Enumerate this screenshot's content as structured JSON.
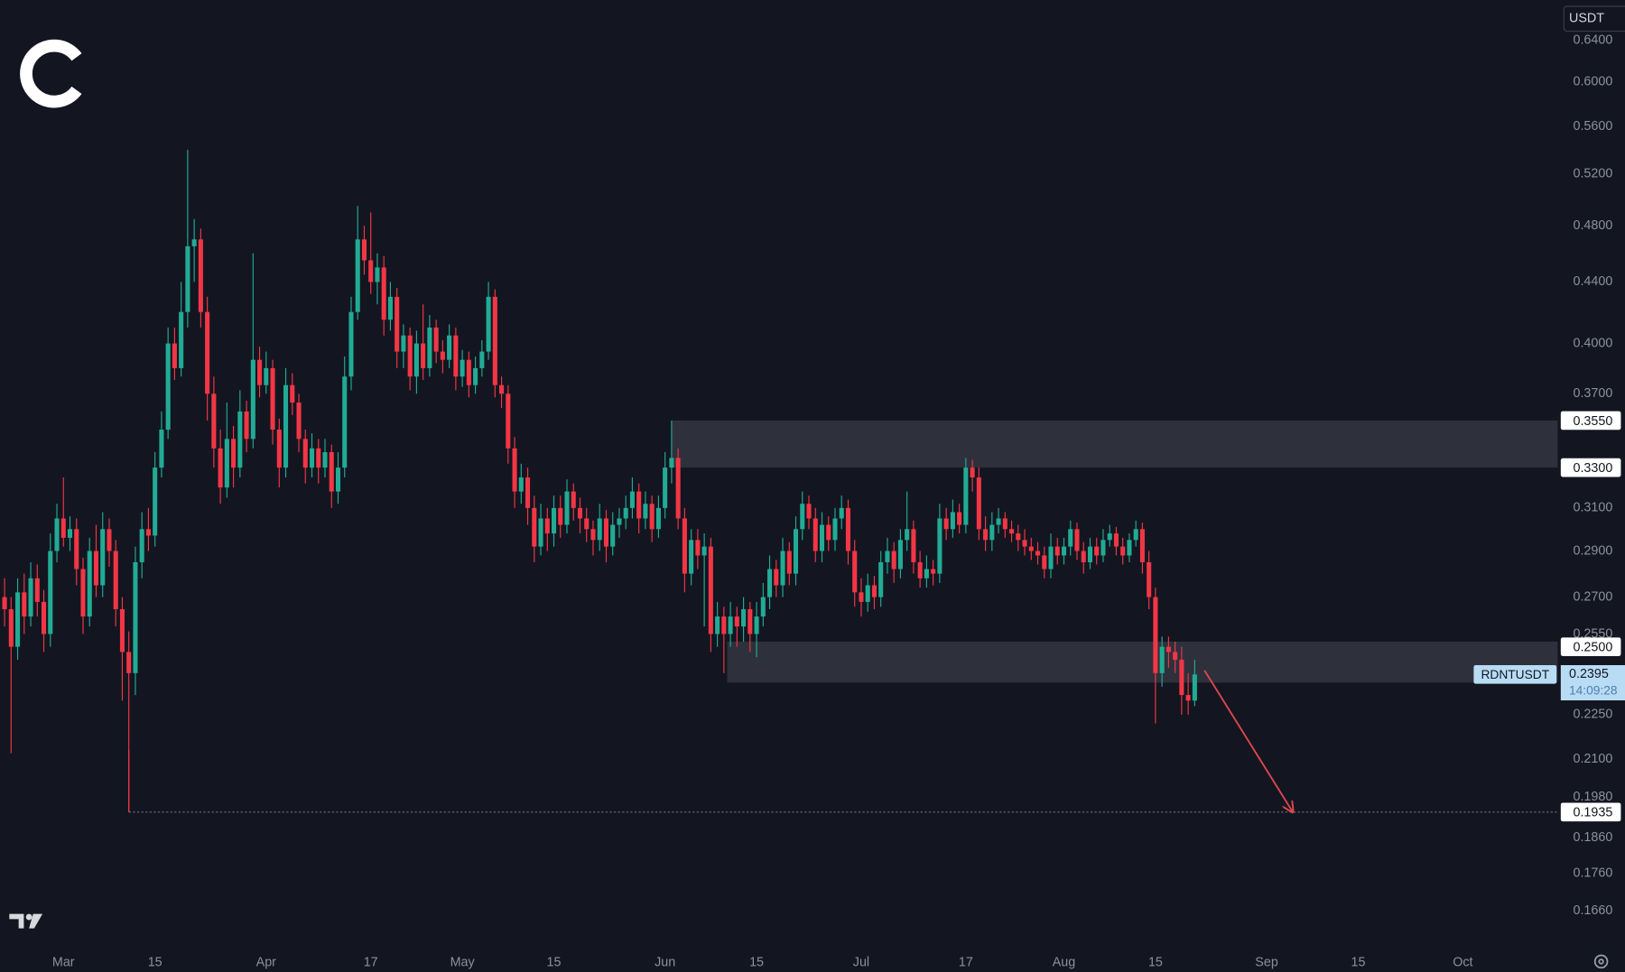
{
  "chart_data": {
    "type": "candlestick",
    "currency": "USDT",
    "log_scale": true,
    "up_color": "#22ab94",
    "down_color": "#f23645",
    "xlim": [
      -9.7,
      228.5
    ],
    "ylim": [
      0.158,
      0.681
    ],
    "xticks": [
      {
        "value": 0,
        "label": "Mar"
      },
      {
        "value": 14,
        "label": "15"
      },
      {
        "value": 31,
        "label": "Apr"
      },
      {
        "value": 47,
        "label": "17"
      },
      {
        "value": 61,
        "label": "May"
      },
      {
        "value": 75,
        "label": "15"
      },
      {
        "value": 92,
        "label": "Jun"
      },
      {
        "value": 106,
        "label": "15"
      },
      {
        "value": 122,
        "label": "Jul"
      },
      {
        "value": 138,
        "label": "17"
      },
      {
        "value": 153,
        "label": "Aug"
      },
      {
        "value": 167,
        "label": "15"
      },
      {
        "value": 184,
        "label": "Sep"
      },
      {
        "value": 198,
        "label": "15"
      },
      {
        "value": 214,
        "label": "Oct"
      }
    ],
    "yticks": [
      {
        "value": 0.64,
        "label": "0.6400"
      },
      {
        "value": 0.6,
        "label": "0.6000"
      },
      {
        "value": 0.56,
        "label": "0.5600"
      },
      {
        "value": 0.52,
        "label": "0.5200"
      },
      {
        "value": 0.48,
        "label": "0.4800"
      },
      {
        "value": 0.44,
        "label": "0.4400"
      },
      {
        "value": 0.4,
        "label": "0.4000"
      },
      {
        "value": 0.37,
        "label": "0.3700"
      },
      {
        "value": 0.31,
        "label": "0.3100"
      },
      {
        "value": 0.29,
        "label": "0.2900"
      },
      {
        "value": 0.27,
        "label": "0.2700"
      },
      {
        "value": 0.255,
        "label": "0.2550"
      },
      {
        "value": 0.225,
        "label": "0.2250"
      },
      {
        "value": 0.21,
        "label": "0.2100"
      },
      {
        "value": 0.198,
        "label": "0.1980"
      },
      {
        "value": 0.186,
        "label": "0.1860"
      },
      {
        "value": 0.176,
        "label": "0.1760"
      },
      {
        "value": 0.166,
        "label": "0.1660"
      }
    ],
    "zones": [
      {
        "x0": 93,
        "y0": 0.33,
        "y1": 0.355,
        "color": "#787b86"
      },
      {
        "x0": 101.5,
        "y0": 0.2365,
        "y1": 0.252,
        "color": "#787b86"
      }
    ],
    "support_line": {
      "x0": 10,
      "value": 0.1935
    },
    "arrow": {
      "from": [
        174.5,
        0.241
      ],
      "to": [
        188,
        0.1935
      ],
      "color": "#e0474c"
    },
    "price_labels": [
      {
        "value": 0.355,
        "label": "0.3550"
      },
      {
        "value": 0.33,
        "label": "0.3300"
      },
      {
        "value": 0.25,
        "label": "0.2500"
      },
      {
        "value": 0.1935,
        "label": "0.1935"
      }
    ],
    "last_price": {
      "value": 0.2395,
      "label": "0.2395",
      "symbol": "RDNTUSDT",
      "countdown": "14:09:28"
    },
    "x": [
      -9,
      -8,
      -7,
      -6,
      -5,
      -4,
      -3,
      -2,
      -1,
      0,
      1,
      2,
      3,
      4,
      5,
      6,
      7,
      8,
      9,
      10,
      11,
      12,
      13,
      14,
      15,
      16,
      17,
      18,
      19,
      20,
      21,
      22,
      23,
      24,
      25,
      26,
      27,
      28,
      29,
      30,
      31,
      32,
      33,
      34,
      35,
      36,
      37,
      38,
      39,
      40,
      41,
      42,
      43,
      44,
      45,
      46,
      47,
      48,
      49,
      50,
      51,
      52,
      53,
      54,
      55,
      56,
      57,
      58,
      59,
      60,
      61,
      62,
      63,
      64,
      65,
      66,
      67,
      68,
      69,
      70,
      71,
      72,
      73,
      74,
      75,
      76,
      77,
      78,
      79,
      80,
      81,
      82,
      83,
      84,
      85,
      86,
      87,
      88,
      89,
      90,
      91,
      92,
      93,
      94,
      95,
      96,
      97,
      98,
      99,
      100,
      101,
      102,
      103,
      104,
      105,
      106,
      107,
      108,
      109,
      110,
      111,
      112,
      113,
      114,
      115,
      116,
      117,
      118,
      119,
      120,
      121,
      122,
      123,
      124,
      125,
      126,
      127,
      128,
      129,
      130,
      131,
      132,
      133,
      134,
      135,
      136,
      137,
      138,
      139,
      140,
      141,
      142,
      143,
      144,
      145,
      146,
      147,
      148,
      149,
      150,
      151,
      152,
      153,
      154,
      155,
      156,
      157,
      158,
      159,
      160,
      161,
      162,
      163,
      164,
      165,
      166,
      167,
      168,
      169,
      170,
      171,
      172,
      173
    ],
    "ohlc": [
      [
        0.27,
        0.278,
        0.258,
        0.265
      ],
      [
        0.265,
        0.27,
        0.212,
        0.25
      ],
      [
        0.25,
        0.278,
        0.245,
        0.272
      ],
      [
        0.272,
        0.28,
        0.255,
        0.262
      ],
      [
        0.262,
        0.285,
        0.258,
        0.278
      ],
      [
        0.278,
        0.284,
        0.262,
        0.268
      ],
      [
        0.268,
        0.273,
        0.248,
        0.255
      ],
      [
        0.255,
        0.298,
        0.25,
        0.29
      ],
      [
        0.29,
        0.312,
        0.285,
        0.305
      ],
      [
        0.305,
        0.325,
        0.292,
        0.296
      ],
      [
        0.296,
        0.306,
        0.29,
        0.3
      ],
      [
        0.3,
        0.305,
        0.275,
        0.282
      ],
      [
        0.282,
        0.287,
        0.255,
        0.262
      ],
      [
        0.262,
        0.296,
        0.258,
        0.29
      ],
      [
        0.29,
        0.302,
        0.27,
        0.275
      ],
      [
        0.275,
        0.308,
        0.27,
        0.3
      ],
      [
        0.3,
        0.305,
        0.283,
        0.29
      ],
      [
        0.29,
        0.295,
        0.258,
        0.265
      ],
      [
        0.265,
        0.27,
        0.23,
        0.248
      ],
      [
        0.248,
        0.256,
        0.1935,
        0.24
      ],
      [
        0.24,
        0.292,
        0.232,
        0.285
      ],
      [
        0.285,
        0.308,
        0.278,
        0.3
      ],
      [
        0.3,
        0.31,
        0.29,
        0.297
      ],
      [
        0.297,
        0.338,
        0.292,
        0.33
      ],
      [
        0.33,
        0.36,
        0.325,
        0.35
      ],
      [
        0.35,
        0.41,
        0.345,
        0.4
      ],
      [
        0.4,
        0.41,
        0.378,
        0.385
      ],
      [
        0.385,
        0.44,
        0.38,
        0.42
      ],
      [
        0.42,
        0.54,
        0.41,
        0.465
      ],
      [
        0.465,
        0.485,
        0.44,
        0.47
      ],
      [
        0.47,
        0.478,
        0.41,
        0.42
      ],
      [
        0.42,
        0.43,
        0.355,
        0.37
      ],
      [
        0.37,
        0.38,
        0.33,
        0.34
      ],
      [
        0.34,
        0.35,
        0.312,
        0.32
      ],
      [
        0.32,
        0.365,
        0.315,
        0.345
      ],
      [
        0.345,
        0.352,
        0.32,
        0.33
      ],
      [
        0.33,
        0.372,
        0.325,
        0.36
      ],
      [
        0.36,
        0.366,
        0.338,
        0.345
      ],
      [
        0.345,
        0.46,
        0.34,
        0.39
      ],
      [
        0.39,
        0.398,
        0.368,
        0.375
      ],
      [
        0.375,
        0.395,
        0.37,
        0.385
      ],
      [
        0.385,
        0.39,
        0.342,
        0.35
      ],
      [
        0.35,
        0.356,
        0.32,
        0.33
      ],
      [
        0.33,
        0.385,
        0.325,
        0.375
      ],
      [
        0.375,
        0.382,
        0.358,
        0.365
      ],
      [
        0.365,
        0.37,
        0.338,
        0.345
      ],
      [
        0.345,
        0.35,
        0.322,
        0.33
      ],
      [
        0.33,
        0.348,
        0.325,
        0.34
      ],
      [
        0.34,
        0.345,
        0.322,
        0.33
      ],
      [
        0.33,
        0.345,
        0.325,
        0.338
      ],
      [
        0.338,
        0.342,
        0.31,
        0.318
      ],
      [
        0.318,
        0.338,
        0.312,
        0.33
      ],
      [
        0.33,
        0.392,
        0.325,
        0.38
      ],
      [
        0.38,
        0.43,
        0.372,
        0.42
      ],
      [
        0.42,
        0.495,
        0.415,
        0.47
      ],
      [
        0.47,
        0.48,
        0.445,
        0.455
      ],
      [
        0.455,
        0.49,
        0.432,
        0.44
      ],
      [
        0.44,
        0.46,
        0.425,
        0.45
      ],
      [
        0.45,
        0.458,
        0.405,
        0.415
      ],
      [
        0.415,
        0.44,
        0.408,
        0.43
      ],
      [
        0.43,
        0.436,
        0.385,
        0.395
      ],
      [
        0.395,
        0.412,
        0.385,
        0.405
      ],
      [
        0.405,
        0.41,
        0.372,
        0.38
      ],
      [
        0.38,
        0.408,
        0.37,
        0.4
      ],
      [
        0.4,
        0.425,
        0.378,
        0.385
      ],
      [
        0.385,
        0.418,
        0.38,
        0.41
      ],
      [
        0.41,
        0.415,
        0.388,
        0.395
      ],
      [
        0.395,
        0.402,
        0.382,
        0.39
      ],
      [
        0.39,
        0.412,
        0.385,
        0.405
      ],
      [
        0.405,
        0.41,
        0.372,
        0.38
      ],
      [
        0.38,
        0.396,
        0.374,
        0.39
      ],
      [
        0.39,
        0.395,
        0.368,
        0.375
      ],
      [
        0.375,
        0.392,
        0.37,
        0.385
      ],
      [
        0.385,
        0.402,
        0.38,
        0.395
      ],
      [
        0.395,
        0.44,
        0.39,
        0.43
      ],
      [
        0.43,
        0.435,
        0.368,
        0.375
      ],
      [
        0.375,
        0.38,
        0.362,
        0.37
      ],
      [
        0.37,
        0.375,
        0.332,
        0.34
      ],
      [
        0.34,
        0.346,
        0.31,
        0.318
      ],
      [
        0.318,
        0.332,
        0.312,
        0.325
      ],
      [
        0.325,
        0.33,
        0.302,
        0.31
      ],
      [
        0.31,
        0.316,
        0.285,
        0.292
      ],
      [
        0.292,
        0.312,
        0.288,
        0.305
      ],
      [
        0.305,
        0.31,
        0.29,
        0.298
      ],
      [
        0.298,
        0.316,
        0.292,
        0.31
      ],
      [
        0.31,
        0.316,
        0.296,
        0.302
      ],
      [
        0.302,
        0.324,
        0.298,
        0.318
      ],
      [
        0.318,
        0.322,
        0.304,
        0.31
      ],
      [
        0.31,
        0.315,
        0.298,
        0.305
      ],
      [
        0.305,
        0.31,
        0.294,
        0.3
      ],
      [
        0.3,
        0.304,
        0.288,
        0.295
      ],
      [
        0.295,
        0.312,
        0.29,
        0.305
      ],
      [
        0.305,
        0.309,
        0.285,
        0.292
      ],
      [
        0.292,
        0.308,
        0.288,
        0.302
      ],
      [
        0.302,
        0.31,
        0.296,
        0.305
      ],
      [
        0.305,
        0.316,
        0.3,
        0.31
      ],
      [
        0.31,
        0.325,
        0.305,
        0.318
      ],
      [
        0.318,
        0.322,
        0.298,
        0.305
      ],
      [
        0.305,
        0.318,
        0.3,
        0.312
      ],
      [
        0.312,
        0.316,
        0.294,
        0.3
      ],
      [
        0.3,
        0.316,
        0.296,
        0.31
      ],
      [
        0.31,
        0.338,
        0.305,
        0.33
      ],
      [
        0.33,
        0.355,
        0.322,
        0.335
      ],
      [
        0.335,
        0.34,
        0.3,
        0.305
      ],
      [
        0.305,
        0.31,
        0.272,
        0.28
      ],
      [
        0.28,
        0.3,
        0.275,
        0.295
      ],
      [
        0.295,
        0.3,
        0.282,
        0.288
      ],
      [
        0.288,
        0.298,
        0.258,
        0.292
      ],
      [
        0.292,
        0.296,
        0.248,
        0.255
      ],
      [
        0.255,
        0.268,
        0.25,
        0.262
      ],
      [
        0.262,
        0.266,
        0.24,
        0.255
      ],
      [
        0.255,
        0.268,
        0.25,
        0.262
      ],
      [
        0.262,
        0.266,
        0.25,
        0.258
      ],
      [
        0.258,
        0.27,
        0.252,
        0.265
      ],
      [
        0.265,
        0.268,
        0.248,
        0.255
      ],
      [
        0.255,
        0.268,
        0.246,
        0.262
      ],
      [
        0.262,
        0.276,
        0.258,
        0.27
      ],
      [
        0.27,
        0.288,
        0.265,
        0.282
      ],
      [
        0.282,
        0.286,
        0.27,
        0.275
      ],
      [
        0.275,
        0.296,
        0.27,
        0.29
      ],
      [
        0.29,
        0.294,
        0.275,
        0.28
      ],
      [
        0.28,
        0.306,
        0.275,
        0.3
      ],
      [
        0.3,
        0.318,
        0.295,
        0.312
      ],
      [
        0.312,
        0.316,
        0.3,
        0.305
      ],
      [
        0.305,
        0.31,
        0.285,
        0.29
      ],
      [
        0.29,
        0.308,
        0.285,
        0.302
      ],
      [
        0.302,
        0.306,
        0.29,
        0.295
      ],
      [
        0.295,
        0.31,
        0.29,
        0.305
      ],
      [
        0.305,
        0.316,
        0.3,
        0.31
      ],
      [
        0.31,
        0.314,
        0.284,
        0.29
      ],
      [
        0.29,
        0.295,
        0.266,
        0.272
      ],
      [
        0.272,
        0.278,
        0.262,
        0.268
      ],
      [
        0.268,
        0.28,
        0.264,
        0.275
      ],
      [
        0.275,
        0.279,
        0.265,
        0.27
      ],
      [
        0.27,
        0.29,
        0.266,
        0.285
      ],
      [
        0.285,
        0.296,
        0.28,
        0.29
      ],
      [
        0.29,
        0.294,
        0.276,
        0.282
      ],
      [
        0.282,
        0.3,
        0.278,
        0.295
      ],
      [
        0.295,
        0.318,
        0.29,
        0.3
      ],
      [
        0.3,
        0.304,
        0.28,
        0.285
      ],
      [
        0.285,
        0.29,
        0.274,
        0.278
      ],
      [
        0.278,
        0.288,
        0.274,
        0.282
      ],
      [
        0.282,
        0.286,
        0.275,
        0.28
      ],
      [
        0.28,
        0.312,
        0.276,
        0.305
      ],
      [
        0.305,
        0.31,
        0.295,
        0.3
      ],
      [
        0.3,
        0.314,
        0.296,
        0.308
      ],
      [
        0.308,
        0.312,
        0.298,
        0.302
      ],
      [
        0.302,
        0.335,
        0.298,
        0.33
      ],
      [
        0.33,
        0.334,
        0.318,
        0.325
      ],
      [
        0.325,
        0.33,
        0.295,
        0.3
      ],
      [
        0.3,
        0.306,
        0.29,
        0.295
      ],
      [
        0.295,
        0.308,
        0.29,
        0.302
      ],
      [
        0.302,
        0.31,
        0.298,
        0.305
      ],
      [
        0.305,
        0.308,
        0.296,
        0.3
      ],
      [
        0.3,
        0.304,
        0.294,
        0.298
      ],
      [
        0.298,
        0.302,
        0.29,
        0.295
      ],
      [
        0.295,
        0.3,
        0.288,
        0.292
      ],
      [
        0.292,
        0.296,
        0.286,
        0.29
      ],
      [
        0.29,
        0.294,
        0.284,
        0.288
      ],
      [
        0.288,
        0.292,
        0.278,
        0.282
      ],
      [
        0.282,
        0.298,
        0.278,
        0.292
      ],
      [
        0.292,
        0.296,
        0.284,
        0.288
      ],
      [
        0.288,
        0.296,
        0.284,
        0.292
      ],
      [
        0.292,
        0.304,
        0.288,
        0.3
      ],
      [
        0.3,
        0.303,
        0.286,
        0.29
      ],
      [
        0.29,
        0.294,
        0.28,
        0.285
      ],
      [
        0.285,
        0.296,
        0.282,
        0.292
      ],
      [
        0.292,
        0.296,
        0.284,
        0.288
      ],
      [
        0.288,
        0.3,
        0.285,
        0.295
      ],
      [
        0.295,
        0.302,
        0.292,
        0.298
      ],
      [
        0.298,
        0.301,
        0.288,
        0.292
      ],
      [
        0.292,
        0.296,
        0.284,
        0.288
      ],
      [
        0.288,
        0.298,
        0.285,
        0.295
      ],
      [
        0.295,
        0.304,
        0.292,
        0.3
      ],
      [
        0.3,
        0.303,
        0.28,
        0.285
      ],
      [
        0.285,
        0.29,
        0.265,
        0.27
      ],
      [
        0.27,
        0.274,
        0.222,
        0.24
      ],
      [
        0.24,
        0.254,
        0.235,
        0.25
      ],
      [
        0.25,
        0.254,
        0.242,
        0.248
      ],
      [
        0.248,
        0.252,
        0.24,
        0.245
      ],
      [
        0.245,
        0.25,
        0.225,
        0.232
      ],
      [
        0.232,
        0.24,
        0.225,
        0.23
      ],
      [
        0.23,
        0.245,
        0.228,
        0.2395
      ]
    ]
  }
}
